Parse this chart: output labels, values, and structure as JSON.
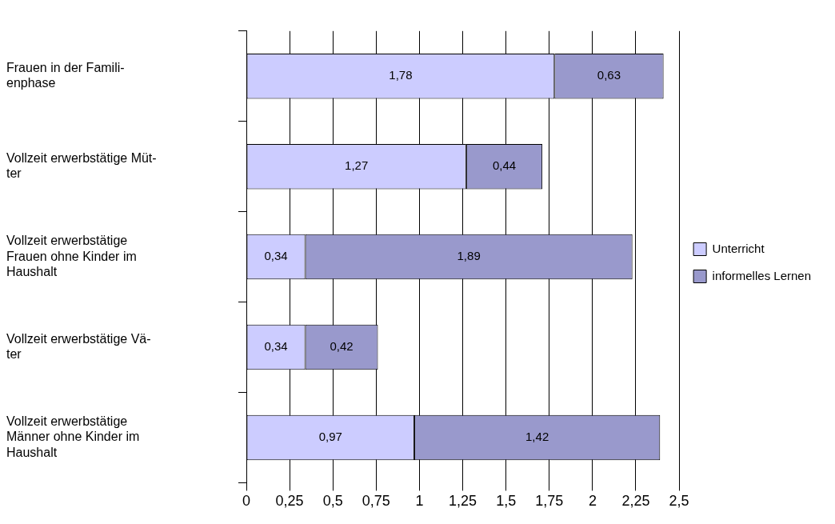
{
  "chart_data": {
    "type": "bar",
    "orientation": "horizontal",
    "stacked": true,
    "categories": [
      "Frauen in der Famili-\nenphase",
      "Vollzeit erwerbstätige Müt-\nter",
      "Vollzeit erwerbstätige\nFrauen ohne Kinder im\nHaushalt",
      "Vollzeit erwerbstätige Vä-\nter",
      "Vollzeit erwerbstätige\nMänner ohne Kinder im\nHaushalt"
    ],
    "series": [
      {
        "name": "Unterricht",
        "color": "#ccccff",
        "values": [
          1.78,
          1.27,
          0.34,
          0.34,
          0.97
        ],
        "value_labels": [
          "1,78",
          "1,27",
          "0,34",
          "0,34",
          "0,97"
        ]
      },
      {
        "name": "informelles Lernen",
        "color": "#9999cc",
        "values": [
          0.63,
          0.44,
          1.89,
          0.42,
          1.42
        ],
        "value_labels": [
          "0,63",
          "0,44",
          "1,89",
          "0,42",
          "1,42"
        ]
      }
    ],
    "xlim": [
      0,
      2.5
    ],
    "xticks": [
      0,
      {
        "value": 0.25,
        "label": "0,25"
      },
      {
        "value": 0.5,
        "label": "0,5"
      },
      {
        "value": 0.75,
        "label": "0,75"
      },
      1,
      {
        "value": 1.25,
        "label": "1,25"
      },
      {
        "value": 1.5,
        "label": "1,5"
      },
      {
        "value": 1.75,
        "label": "1,75"
      },
      2,
      {
        "value": 2.25,
        "label": "2,25"
      },
      {
        "value": 2.5,
        "label": "2,5"
      }
    ],
    "grid": "x",
    "legend": "right"
  }
}
